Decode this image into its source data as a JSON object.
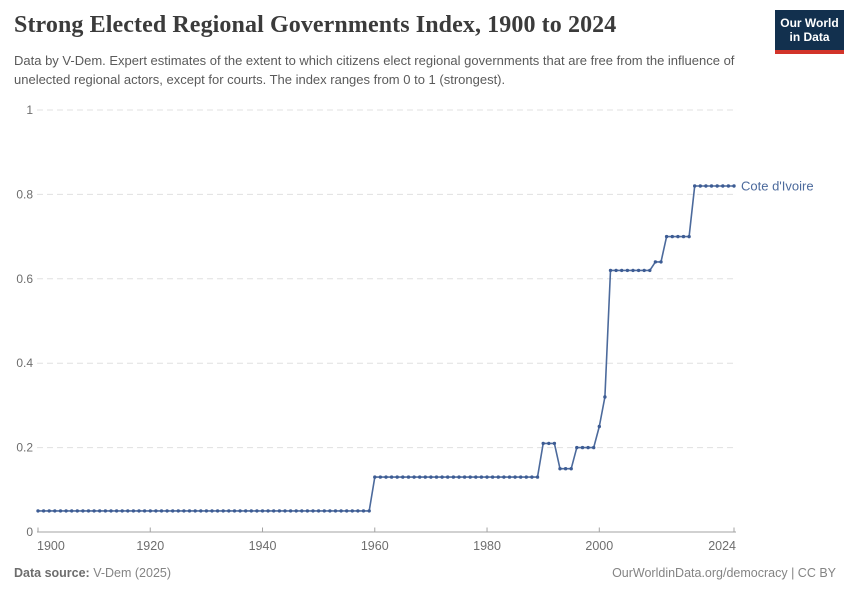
{
  "header": {
    "title": "Strong Elected Regional Governments Index, 1900 to 2024",
    "subtitle": "Data by V-Dem. Expert estimates of the extent to which citizens elect regional governments that are free from the influence of unelected regional actors, except for courts. The index ranges from 0 to 1 (strongest).",
    "logo": {
      "line1": "Our World",
      "line2": "in Data",
      "bg_color": "#12304e",
      "accent_color": "#d2342a"
    }
  },
  "chart_data": {
    "type": "line",
    "title": "Strong Elected Regional Governments Index, 1900 to 2024",
    "xlabel": "",
    "ylabel": "",
    "xlim": [
      1900,
      2024
    ],
    "ylim": [
      0,
      1
    ],
    "x_ticks": [
      1900,
      1920,
      1940,
      1960,
      1980,
      2000,
      2024
    ],
    "y_ticks": [
      0,
      0.2,
      0.4,
      0.6,
      0.8,
      1
    ],
    "grid": "horizontal-dashed",
    "legend_position": "end-of-line-label",
    "series": [
      {
        "name": "Cote d'Ivoire",
        "color": "#4c6a9c",
        "dot_color": "#3d5c94",
        "steps": [
          {
            "from": 1900,
            "to": 1959,
            "value": 0.05
          },
          {
            "from": 1960,
            "to": 1989,
            "value": 0.13
          },
          {
            "from": 1990,
            "to": 1992,
            "value": 0.21
          },
          {
            "from": 1993,
            "to": 1995,
            "value": 0.15
          },
          {
            "from": 1996,
            "to": 1999,
            "value": 0.2
          },
          {
            "from": 2000,
            "to": 2000,
            "value": 0.25
          },
          {
            "from": 2001,
            "to": 2001,
            "value": 0.32
          },
          {
            "from": 2002,
            "to": 2009,
            "value": 0.62
          },
          {
            "from": 2010,
            "to": 2011,
            "value": 0.64
          },
          {
            "from": 2012,
            "to": 2016,
            "value": 0.7
          },
          {
            "from": 2017,
            "to": 2024,
            "value": 0.82
          }
        ]
      }
    ],
    "colors": {
      "grid": "#e0e0e0",
      "axis": "#a3a3a3",
      "tick_label": "#6e6e6e"
    }
  },
  "footer": {
    "source_label": "Data source:",
    "source_value": " V-Dem (2025)",
    "credit": "OurWorldinData.org/democracy | CC BY"
  }
}
